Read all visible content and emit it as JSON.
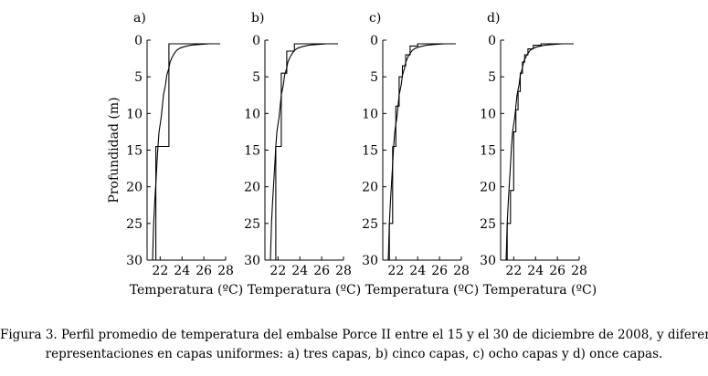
{
  "chart_data": [
    {
      "type": "line",
      "panel_label": "a)",
      "ylabel": "Profundidad (m)",
      "xlabel": "Temperatura (ºC)",
      "xlim": [
        20.8,
        28
      ],
      "ylim": [
        30,
        0
      ],
      "x_ticks": [
        "22",
        "24",
        "26",
        "28"
      ],
      "y_ticks": [
        "0",
        "5",
        "10",
        "15",
        "20",
        "25",
        "30"
      ],
      "series": [
        {
          "x": [
            27.5,
            26.5,
            25.5,
            24.8,
            24.2,
            23.8,
            23.5,
            23.3,
            23.1,
            22.9,
            22.8,
            22.6,
            22.5,
            22.3,
            22.2,
            22.1,
            21.9,
            21.8,
            21.7,
            21.6,
            21.5,
            21.4,
            21.35,
            21.3
          ],
          "y": [
            0.5,
            0.5,
            0.6,
            0.7,
            0.9,
            1.1,
            1.4,
            1.8,
            2.3,
            3.0,
            3.8,
            4.8,
            6.0,
            7.5,
            9.0,
            10.5,
            12.5,
            14.5,
            17.0,
            19.5,
            22.0,
            25.0,
            27.5,
            30.0
          ]
        },
        {
          "x": [
            27.5,
            23.2,
            23.2,
            22.8,
            22.8,
            21.6,
            21.6,
            21.3,
            21.3
          ],
          "y": [
            0.5,
            0.5,
            0.5,
            0.5,
            14.5,
            14.5,
            30.0,
            30.0,
            30.0
          ]
        }
      ]
    },
    {
      "type": "line",
      "panel_label": "b)",
      "xlabel": "Temperatura (ºC)",
      "xlim": [
        20.8,
        28
      ],
      "ylim": [
        30,
        0
      ],
      "x_ticks": [
        "22",
        "24",
        "26",
        "28"
      ],
      "y_ticks": [
        "0",
        "5",
        "10",
        "15",
        "20",
        "25",
        "30"
      ],
      "series": [
        {
          "x": [
            27.5,
            26.5,
            25.5,
            24.8,
            24.2,
            23.8,
            23.5,
            23.3,
            23.1,
            22.9,
            22.8,
            22.6,
            22.5,
            22.3,
            22.2,
            22.1,
            21.9,
            21.8,
            21.7,
            21.6,
            21.5,
            21.4,
            21.35,
            21.3
          ],
          "y": [
            0.5,
            0.5,
            0.6,
            0.7,
            0.9,
            1.1,
            1.4,
            1.8,
            2.3,
            3.0,
            3.8,
            4.8,
            6.0,
            7.5,
            9.0,
            10.5,
            12.5,
            14.5,
            17.0,
            19.5,
            22.0,
            25.0,
            27.5,
            30.0
          ]
        },
        {
          "x": [
            27.5,
            23.5,
            23.5,
            22.8,
            22.8,
            22.3,
            22.3,
            21.8,
            21.8,
            21.4,
            21.4
          ],
          "y": [
            0.5,
            0.5,
            1.5,
            1.5,
            4.5,
            4.5,
            14.5,
            14.5,
            30.0,
            30.0,
            30.0
          ]
        }
      ]
    },
    {
      "type": "line",
      "panel_label": "c)",
      "xlabel": "Temperatura (ºC)",
      "xlim": [
        20.8,
        28
      ],
      "ylim": [
        30,
        0
      ],
      "x_ticks": [
        "22",
        "24",
        "26",
        "28"
      ],
      "y_ticks": [
        "0",
        "5",
        "10",
        "15",
        "20",
        "25",
        "30"
      ],
      "series": [
        {
          "x": [
            27.5,
            26.5,
            25.5,
            24.8,
            24.2,
            23.8,
            23.5,
            23.3,
            23.1,
            22.9,
            22.8,
            22.6,
            22.5,
            22.3,
            22.2,
            22.1,
            21.9,
            21.8,
            21.7,
            21.6,
            21.5,
            21.4,
            21.35,
            21.3
          ],
          "y": [
            0.5,
            0.5,
            0.6,
            0.7,
            0.9,
            1.1,
            1.4,
            1.8,
            2.3,
            3.0,
            3.8,
            4.8,
            6.0,
            7.5,
            9.0,
            10.5,
            12.5,
            14.5,
            17.0,
            19.5,
            22.0,
            25.0,
            27.5,
            30.0
          ]
        },
        {
          "x": [
            27.5,
            24.0,
            24.0,
            23.3,
            23.3,
            22.9,
            22.9,
            22.6,
            22.6,
            22.3,
            22.3,
            22.0,
            22.0,
            21.7,
            21.7,
            21.4,
            21.4
          ],
          "y": [
            0.5,
            0.5,
            0.8,
            0.8,
            2.0,
            2.0,
            3.5,
            3.5,
            5.0,
            5.0,
            9.0,
            9.0,
            14.5,
            14.5,
            25.0,
            25.0,
            30.0
          ]
        }
      ]
    },
    {
      "type": "line",
      "panel_label": "d)",
      "xlabel": "Temperatura (ºC)",
      "xlim": [
        20.8,
        28
      ],
      "ylim": [
        30,
        0
      ],
      "x_ticks": [
        "22",
        "24",
        "26",
        "28"
      ],
      "y_ticks": [
        "0",
        "5",
        "10",
        "15",
        "20",
        "25",
        "30"
      ],
      "series": [
        {
          "x": [
            27.5,
            26.5,
            25.5,
            24.8,
            24.2,
            23.8,
            23.5,
            23.3,
            23.1,
            22.9,
            22.8,
            22.6,
            22.5,
            22.3,
            22.2,
            22.1,
            21.9,
            21.8,
            21.7,
            21.6,
            21.5,
            21.4,
            21.35,
            21.3
          ],
          "y": [
            0.5,
            0.5,
            0.6,
            0.7,
            0.9,
            1.1,
            1.4,
            1.8,
            2.3,
            3.0,
            3.8,
            4.8,
            6.0,
            7.5,
            9.0,
            10.5,
            12.5,
            14.5,
            17.0,
            19.5,
            22.0,
            25.0,
            27.5,
            30.0
          ]
        },
        {
          "x": [
            27.5,
            24.5,
            24.5,
            23.8,
            23.8,
            23.3,
            23.3,
            23.0,
            23.0,
            22.8,
            22.8,
            22.6,
            22.6,
            22.4,
            22.4,
            22.2,
            22.2,
            22.0,
            22.0,
            21.7,
            21.7,
            21.4,
            21.4
          ],
          "y": [
            0.5,
            0.5,
            0.7,
            0.7,
            1.2,
            1.2,
            2.0,
            2.0,
            3.0,
            3.0,
            4.5,
            4.5,
            7.0,
            7.0,
            9.5,
            9.5,
            12.5,
            12.5,
            20.5,
            20.5,
            25.0,
            25.0,
            30.0
          ]
        }
      ]
    }
  ],
  "caption": {
    "line1": "Figura 3. Perfil promedio de temperatura del embalse Porce II entre el 15 y el 30 de diciembre de 2008, y diferentes",
    "line2": "representaciones en capas uniformes: a) tres capas, b) cinco capas, c) ocho capas y d) once capas."
  }
}
